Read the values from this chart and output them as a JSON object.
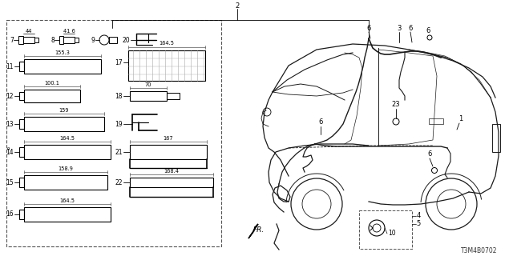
{
  "bg_color": "#ffffff",
  "fig_width": 6.4,
  "fig_height": 3.2,
  "dpi": 100,
  "diagram_code": "T3M4B0702",
  "line_color": "#1a1a1a",
  "dashed_color": "#444444"
}
